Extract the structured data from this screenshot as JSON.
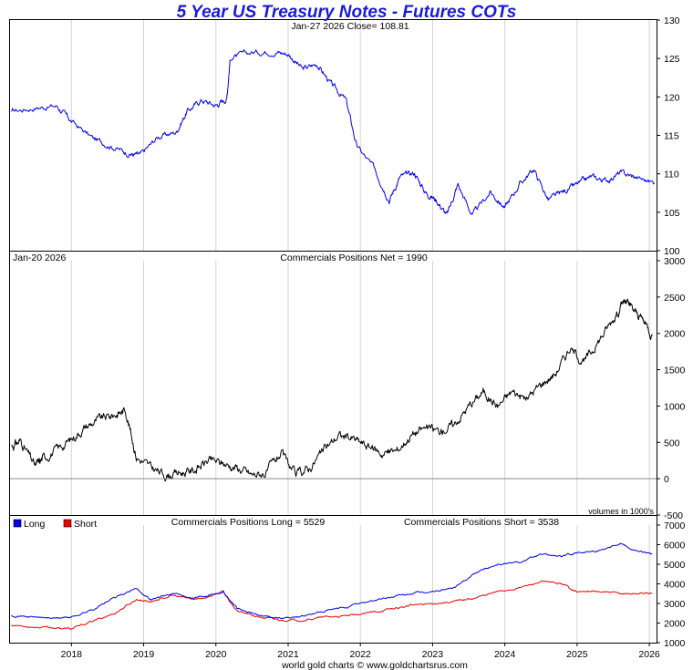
{
  "title": "5 Year US Treasury Notes - Futures COTs",
  "footer": "world gold charts © www.goldchartsrus.com",
  "colors": {
    "price": "#0000ee",
    "net": "#000000",
    "long": "#0000ee",
    "short": "#ee0000",
    "grid": "#d4d4d4",
    "title": "#1a1adb"
  },
  "chart_data": [
    {
      "type": "line",
      "panel": "price",
      "annotation": "Jan-27  2026   Close= 108.81",
      "ylim": [
        100,
        130
      ],
      "yticks": [
        100,
        105,
        110,
        115,
        120,
        125,
        130
      ],
      "x": [
        2017.17,
        2017.5,
        2017.8,
        2018.0,
        2018.3,
        2018.55,
        2018.8,
        2018.95,
        2019.2,
        2019.45,
        2019.6,
        2019.8,
        2020.0,
        2020.15,
        2020.2,
        2020.5,
        2020.8,
        2021.0,
        2021.2,
        2021.4,
        2021.6,
        2021.8,
        2021.95,
        2022.2,
        2022.4,
        2022.55,
        2022.75,
        2022.9,
        2023.05,
        2023.2,
        2023.35,
        2023.55,
        2023.8,
        2024.0,
        2024.2,
        2024.4,
        2024.6,
        2024.8,
        2025.0,
        2025.2,
        2025.4,
        2025.6,
        2025.8,
        2026.07
      ],
      "values": [
        118.1,
        118.6,
        118.8,
        116.8,
        114.6,
        113.6,
        112.6,
        112.4,
        114.8,
        115.4,
        118.1,
        119.6,
        118.9,
        119.8,
        125.1,
        125.8,
        125.9,
        125.6,
        123.6,
        124.3,
        121.6,
        119.6,
        113.6,
        110.6,
        106.6,
        109.6,
        110.1,
        107.6,
        106.6,
        104.6,
        108.6,
        104.6,
        107.6,
        105.6,
        108.6,
        110.6,
        106.6,
        107.6,
        108.6,
        109.6,
        109.1,
        110.1,
        109.6,
        108.81
      ]
    },
    {
      "type": "line",
      "panel": "net",
      "date_label": "Jan-20  2026",
      "annotation": "Commercials Positions Net = 1990",
      "units_note": "volumes in 1000's",
      "ylim": [
        -500,
        3000
      ],
      "yticks": [
        -500,
        0,
        500,
        1000,
        1500,
        2000,
        2500,
        3000
      ],
      "x": [
        2017.17,
        2017.3,
        2017.5,
        2017.6,
        2017.8,
        2018.0,
        2018.2,
        2018.4,
        2018.6,
        2018.75,
        2018.9,
        2019.1,
        2019.3,
        2019.5,
        2019.7,
        2019.9,
        2020.1,
        2020.3,
        2020.5,
        2020.7,
        2020.9,
        2021.1,
        2021.3,
        2021.5,
        2021.7,
        2021.9,
        2022.1,
        2022.3,
        2022.5,
        2022.7,
        2022.9,
        2023.1,
        2023.3,
        2023.5,
        2023.7,
        2023.9,
        2024.1,
        2024.3,
        2024.5,
        2024.7,
        2024.9,
        2025.1,
        2025.3,
        2025.5,
        2025.65,
        2025.75,
        2025.9,
        2026.04
      ],
      "values": [
        450,
        520,
        170,
        280,
        400,
        540,
        720,
        820,
        880,
        950,
        300,
        150,
        50,
        80,
        120,
        250,
        210,
        150,
        50,
        80,
        350,
        50,
        150,
        400,
        600,
        550,
        450,
        350,
        380,
        600,
        700,
        650,
        750,
        1000,
        1200,
        1000,
        1200,
        1100,
        1300,
        1450,
        1800,
        1600,
        1900,
        2200,
        2450,
        2350,
        2200,
        1990
      ]
    },
    {
      "type": "line",
      "panel": "long_short",
      "annotation_long": "Commercials Positions Long = 5529",
      "annotation_short": "Commercials Positions Short = 3538",
      "ylim": [
        1000,
        7000
      ],
      "yticks": [
        1000,
        2000,
        3000,
        4000,
        5000,
        6000,
        7000
      ],
      "xlim": [
        2017.15,
        2026.1
      ],
      "xticks": [
        2018,
        2019,
        2020,
        2021,
        2022,
        2023,
        2024,
        2025,
        2026
      ],
      "xtick_labels": [
        "2018",
        "2019",
        "2020",
        "2021",
        "2022",
        "2023",
        "2024",
        "2025",
        "2026"
      ],
      "legend": [
        "Long",
        "Short"
      ],
      "x": [
        2017.17,
        2017.5,
        2017.8,
        2018.0,
        2018.3,
        2018.6,
        2018.9,
        2019.1,
        2019.4,
        2019.7,
        2019.9,
        2020.1,
        2020.3,
        2020.6,
        2020.9,
        2021.2,
        2021.5,
        2021.8,
        2022.1,
        2022.4,
        2022.7,
        2023.0,
        2023.3,
        2023.6,
        2023.9,
        2024.2,
        2024.5,
        2024.8,
        2025.0,
        2025.3,
        2025.6,
        2025.8,
        2026.04
      ],
      "series": [
        {
          "name": "Long",
          "values": [
            2400,
            2300,
            2250,
            2300,
            2700,
            3300,
            3750,
            3200,
            3500,
            3300,
            3450,
            3600,
            2700,
            2400,
            2250,
            2350,
            2600,
            2800,
            3100,
            3300,
            3500,
            3600,
            3800,
            4600,
            5000,
            5100,
            5500,
            5400,
            5600,
            5700,
            6100,
            5700,
            5529
          ]
        },
        {
          "name": "Short",
          "values": [
            1900,
            1800,
            1750,
            1700,
            2100,
            2500,
            3200,
            3100,
            3400,
            3200,
            3350,
            3600,
            2600,
            2300,
            2150,
            2150,
            2300,
            2350,
            2500,
            2700,
            2900,
            3000,
            3100,
            3300,
            3600,
            3800,
            4100,
            4000,
            3600,
            3600,
            3500,
            3500,
            3538
          ]
        }
      ]
    }
  ]
}
